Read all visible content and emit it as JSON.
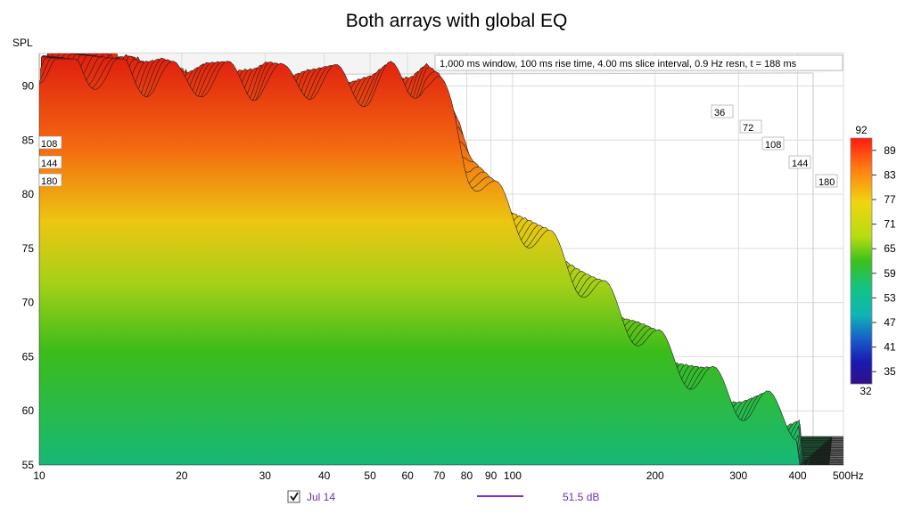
{
  "chart_data": {
    "type": "waterfall",
    "title": "Both arrays with global EQ",
    "ylabel": "SPL",
    "x_unit": "Hz",
    "x_scale": "log",
    "xlim": [
      10,
      500
    ],
    "ylim": [
      55,
      93
    ],
    "x_ticks": [
      {
        "value": 10,
        "label": "10"
      },
      {
        "value": 20,
        "label": "20"
      },
      {
        "value": 30,
        "label": "30"
      },
      {
        "value": 40,
        "label": "40"
      },
      {
        "value": 50,
        "label": "50"
      },
      {
        "value": 60,
        "label": "60"
      },
      {
        "value": 70,
        "label": "70"
      },
      {
        "value": 80,
        "label": "80"
      },
      {
        "value": 90,
        "label": "90"
      },
      {
        "value": 100,
        "label": "100"
      },
      {
        "value": 200,
        "label": "200"
      },
      {
        "value": 300,
        "label": "300"
      },
      {
        "value": 400,
        "label": "400"
      },
      {
        "value": 500,
        "label": "500Hz"
      }
    ],
    "y_ticks": [
      55,
      60,
      65,
      70,
      75,
      80,
      85,
      90
    ],
    "info": "1,000 ms window, 100 ms rise time, 4.00 ms slice interval, 0.9 Hz resn, t = 188 ms",
    "time_labels_left": [
      "108",
      "144",
      "180"
    ],
    "time_labels_right": [
      "36",
      "72",
      "108",
      "144",
      "180"
    ],
    "colorscale": {
      "top": "92",
      "bottom": "32",
      "labels": [
        "89",
        "83",
        "77",
        "71",
        "65",
        "59",
        "53",
        "47",
        "41",
        "35"
      ]
    },
    "front_slice": {
      "freq_hz": [
        10,
        11,
        12,
        13,
        14,
        15,
        16,
        18,
        20,
        22,
        25,
        28,
        30,
        33,
        36,
        40,
        45,
        50,
        55,
        60,
        65,
        70,
        75,
        80,
        90,
        100,
        120,
        150,
        180,
        200,
        250,
        300,
        350,
        400
      ],
      "spl_db": [
        92,
        92.3,
        92.2,
        91.5,
        90.8,
        91.2,
        90.6,
        91,
        90.2,
        90.8,
        90.5,
        90.3,
        90.8,
        90.2,
        90.6,
        90.4,
        90,
        89.8,
        90.5,
        90.2,
        91,
        89.5,
        87,
        83,
        80,
        78,
        75,
        71,
        68,
        66,
        63,
        61,
        60,
        59
      ]
    },
    "grid": true
  },
  "legend": {
    "checkbox_checked": true,
    "name": "Jul 14",
    "value": "51.5 dB",
    "color": "#7a2fd0"
  }
}
